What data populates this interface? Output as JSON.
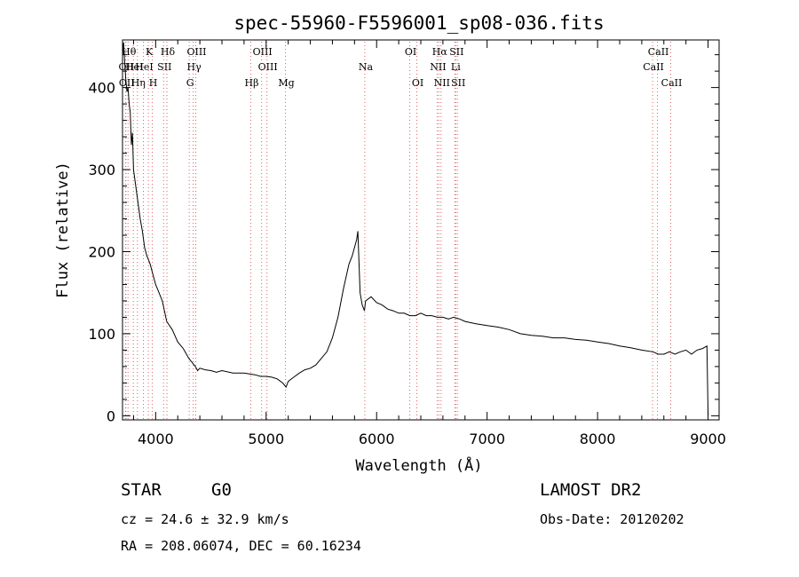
{
  "chart_data": {
    "type": "line",
    "title": "spec-55960-F5596001_sp08-036.fits",
    "xlabel": "Wavelength (Å)",
    "ylabel": "Flux (relative)",
    "xlim": [
      3700,
      9100
    ],
    "ylim": [
      -5,
      458
    ],
    "xticks": [
      4000,
      5000,
      6000,
      7000,
      8000,
      9000
    ],
    "yticks": [
      0,
      100,
      200,
      300,
      400
    ],
    "grid": false,
    "legend": "none",
    "line_color": "#000000",
    "marker_color": "#e06060",
    "series": [
      {
        "x": [
          3700,
          3710,
          3720,
          3730,
          3740,
          3750,
          3760,
          3770,
          3780,
          3790,
          3800,
          3820,
          3840,
          3860,
          3880,
          3900,
          3920,
          3950,
          3980,
          4000,
          4030,
          4060,
          4100,
          4150,
          4200,
          4250,
          4300,
          4330,
          4360,
          4380,
          4400,
          4450,
          4500,
          4550,
          4600,
          4700,
          4800,
          4900,
          4950,
          5000,
          5050,
          5100,
          5150,
          5180,
          5200,
          5250,
          5300,
          5350,
          5400,
          5450,
          5500,
          5550,
          5600,
          5650,
          5700,
          5750,
          5780,
          5800,
          5820,
          5830,
          5850,
          5870,
          5890,
          5900,
          5950,
          6000,
          6050,
          6100,
          6150,
          6200,
          6250,
          6300,
          6350,
          6400,
          6450,
          6500,
          6550,
          6600,
          6650,
          6700,
          6750,
          6800,
          6900,
          7000,
          7100,
          7200,
          7300,
          7400,
          7500,
          7600,
          7700,
          7800,
          7900,
          8000,
          8100,
          8200,
          8300,
          8400,
          8500,
          8550,
          8600,
          8650,
          8700,
          8750,
          8800,
          8850,
          8900,
          8950,
          8990,
          9000
        ],
        "y": [
          440,
          455,
          430,
          410,
          395,
          400,
          380,
          370,
          330,
          345,
          300,
          280,
          260,
          240,
          225,
          205,
          195,
          185,
          170,
          160,
          150,
          140,
          115,
          105,
          90,
          82,
          70,
          65,
          60,
          55,
          58,
          56,
          55,
          53,
          55,
          52,
          52,
          50,
          48,
          48,
          47,
          45,
          40,
          35,
          42,
          47,
          52,
          56,
          58,
          62,
          70,
          78,
          95,
          120,
          155,
          185,
          195,
          205,
          215,
          225,
          150,
          135,
          128,
          140,
          145,
          138,
          135,
          130,
          128,
          125,
          125,
          122,
          122,
          125,
          122,
          122,
          120,
          120,
          118,
          120,
          118,
          115,
          112,
          110,
          108,
          105,
          100,
          98,
          97,
          95,
          95,
          93,
          92,
          90,
          88,
          85,
          83,
          80,
          78,
          75,
          75,
          78,
          75,
          78,
          80,
          75,
          80,
          82,
          85,
          0
        ]
      }
    ],
    "line_markers": [
      {
        "x": 3727,
        "label": "OII",
        "row": 2
      },
      {
        "x": 3730,
        "label": "OII",
        "row": 4
      },
      {
        "x": 3750,
        "label": "Hθ",
        "row": 1
      },
      {
        "x": 3798,
        "label": "HeI",
        "row": 2
      },
      {
        "x": 3835,
        "label": "Hη",
        "row": 4
      },
      {
        "x": 3889,
        "label": "HeI",
        "row": 2
      },
      {
        "x": 3934,
        "label": "K",
        "row": 1
      },
      {
        "x": 3970,
        "label": "H",
        "row": 4
      },
      {
        "x": 4072,
        "label": "SII",
        "row": 2
      },
      {
        "x": 4102,
        "label": "Hδ",
        "row": 1
      },
      {
        "x": 4304,
        "label": "G",
        "row": 4
      },
      {
        "x": 4340,
        "label": "Hγ",
        "row": 3
      },
      {
        "x": 4363,
        "label": "OIII",
        "row": 1
      },
      {
        "x": 4861,
        "label": "Hβ",
        "row": 4
      },
      {
        "x": 4959,
        "label": "OIII",
        "row": 1
      },
      {
        "x": 5007,
        "label": "OIII",
        "row": 2
      },
      {
        "x": 5175,
        "label": "Mg",
        "row": 4
      },
      {
        "x": 5893,
        "label": "Na",
        "row": 3
      },
      {
        "x": 6300,
        "label": "OI",
        "row": 1
      },
      {
        "x": 6364,
        "label": "OI",
        "row": 4
      },
      {
        "x": 6548,
        "label": "NII",
        "row": 2
      },
      {
        "x": 6563,
        "label": "Hα",
        "row": 1
      },
      {
        "x": 6583,
        "label": "NII",
        "row": 4
      },
      {
        "x": 6708,
        "label": "Li",
        "row": 3
      },
      {
        "x": 6716,
        "label": "SII",
        "row": 1
      },
      {
        "x": 6731,
        "label": "SII",
        "row": 4
      },
      {
        "x": 8498,
        "label": "CaII",
        "row": 2
      },
      {
        "x": 8542,
        "label": "CaII",
        "row": 1
      },
      {
        "x": 8662,
        "label": "CaII",
        "row": 4
      }
    ]
  },
  "info": {
    "class_label": "STAR",
    "subclass_label": "G0",
    "survey": "LAMOST DR2",
    "cz": "cz = 24.6 ± 32.9 km/s",
    "obs_date": "Obs-Date: 20120202",
    "coords": "RA = 208.06074, DEC =  60.16234"
  }
}
